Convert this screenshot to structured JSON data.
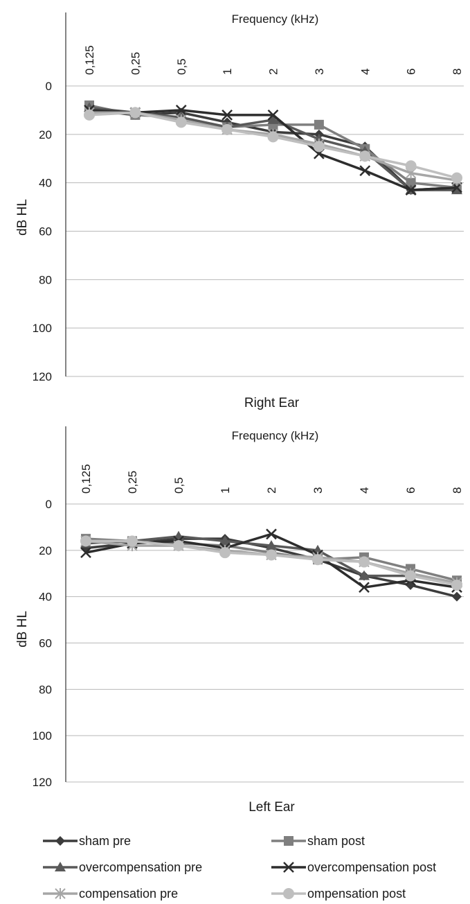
{
  "chart_data": [
    {
      "type": "line",
      "title": "Right Ear",
      "xlabel": "Frequency (kHz)",
      "ylabel": "dB HL",
      "categories": [
        "0,125",
        "0,25",
        "0,5",
        "1",
        "2",
        "3",
        "4",
        "6",
        "8"
      ],
      "y_ticks": [
        "0",
        "20",
        "40",
        "60",
        "80",
        "100",
        "120"
      ],
      "ylim": [
        0,
        120
      ],
      "y_inverted": true,
      "grid": true,
      "series": [
        {
          "name": "sham pre",
          "marker": "diamond",
          "color": "#3c3c3c",
          "values": [
            10,
            12,
            11,
            15,
            19,
            20,
            25,
            43,
            42
          ]
        },
        {
          "name": "sham post",
          "marker": "square",
          "color": "#7f7f7f",
          "values": [
            8,
            12,
            13,
            17,
            16,
            16,
            26,
            40,
            42
          ]
        },
        {
          "name": "overcompensation pre",
          "marker": "triangle",
          "color": "#595959",
          "values": [
            9,
            11,
            13,
            17,
            14,
            22,
            27,
            43,
            43
          ]
        },
        {
          "name": "overcompensation post",
          "marker": "x",
          "color": "#2d2d2d",
          "values": [
            10,
            11,
            10,
            12,
            12,
            28,
            35,
            43,
            42
          ]
        },
        {
          "name": "compensation pre",
          "marker": "asterisk",
          "color": "#a6a6a6",
          "values": [
            11,
            11,
            14,
            18,
            20,
            24,
            29,
            36,
            39
          ]
        },
        {
          "name": "ompensation post",
          "marker": "circle",
          "color": "#bfbfbf",
          "values": [
            12,
            11,
            15,
            18,
            21,
            25,
            29,
            33,
            38
          ]
        }
      ]
    },
    {
      "type": "line",
      "title": "Left Ear",
      "xlabel": "Frequency (kHz)",
      "ylabel": "dB HL",
      "categories": [
        "0,125",
        "0,25",
        "0,5",
        "1",
        "2",
        "3",
        "4",
        "6",
        "8"
      ],
      "y_ticks": [
        "0",
        "20",
        "40",
        "60",
        "80",
        "100",
        "120"
      ],
      "ylim": [
        0,
        120
      ],
      "y_inverted": true,
      "grid": true,
      "series": [
        {
          "name": "sham pre",
          "marker": "diamond",
          "color": "#3c3c3c",
          "values": [
            19,
            17,
            15,
            15,
            19,
            24,
            31,
            35,
            40
          ]
        },
        {
          "name": "sham post",
          "marker": "square",
          "color": "#7f7f7f",
          "values": [
            15,
            16,
            17,
            18,
            21,
            24,
            23,
            28,
            33
          ]
        },
        {
          "name": "overcompensation pre",
          "marker": "triangle",
          "color": "#595959",
          "values": [
            17,
            16,
            14,
            16,
            18,
            20,
            31,
            31,
            34
          ]
        },
        {
          "name": "overcompensation post",
          "marker": "x",
          "color": "#2d2d2d",
          "values": [
            21,
            17,
            16,
            19,
            13,
            22,
            36,
            33,
            36
          ]
        },
        {
          "name": "compensation pre",
          "marker": "asterisk",
          "color": "#a6a6a6",
          "values": [
            16,
            18,
            18,
            20,
            22,
            23,
            25,
            30,
            34
          ]
        },
        {
          "name": "ompensation post",
          "marker": "circle",
          "color": "#bfbfbf",
          "values": [
            16,
            16,
            18,
            21,
            22,
            24,
            25,
            31,
            35
          ]
        }
      ]
    }
  ],
  "legend": {
    "placement": "bottom",
    "items": [
      "sham pre",
      "sham post",
      "overcompensation pre",
      "overcompensation post",
      "compensation pre",
      "ompensation post"
    ]
  }
}
